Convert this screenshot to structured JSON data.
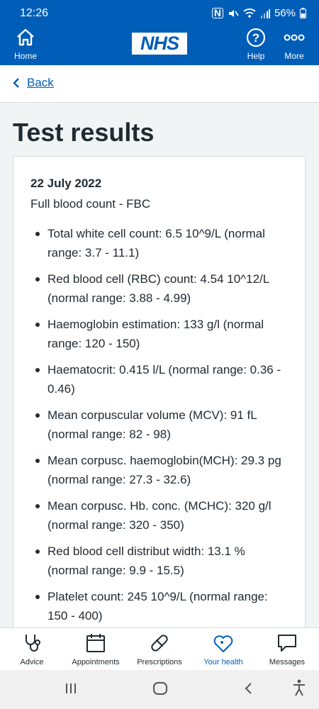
{
  "status_bar": {
    "time": "12:26",
    "battery": "56%",
    "icons": [
      "nfc-icon",
      "mute-icon",
      "wifi-icon",
      "signal-icon",
      "battery-icon"
    ]
  },
  "header": {
    "home_label": "Home",
    "logo_text": "NHS",
    "help_label": "Help",
    "more_label": "More"
  },
  "back_label": "Back",
  "page_title": "Test results",
  "result": {
    "date": "22 July 2022",
    "test_name": "Full blood count - FBC",
    "items": [
      "Total white cell count: 6.5 10^9/L (normal range: 3.7 - 11.1)",
      "Red blood cell (RBC) count: 4.54 10^12/L (normal range: 3.88 - 4.99)",
      "Haemoglobin estimation: 133 g/l (normal range: 120 - 150)",
      "Haematocrit: 0.415 l/L (normal range: 0.36 - 0.46)",
      "Mean corpuscular volume (MCV): 91 fL (normal range: 82 - 98)",
      "Mean corpusc. haemoglobin(MCH): 29.3 pg (normal range: 27.3 - 32.6)",
      "Mean corpusc. Hb. conc. (MCHC): 320 g/l (normal range: 320 - 350)",
      "Red blood cell distribut width: 13.1 % (normal range: 9.9 - 15.5)",
      "Platelet count: 245 10^9/L (normal range: 150 - 400)"
    ]
  },
  "tabs": [
    {
      "label": "Advice",
      "icon": "stethoscope-icon"
    },
    {
      "label": "Appointments",
      "icon": "calendar-icon"
    },
    {
      "label": "Prescriptions",
      "icon": "pill-icon"
    },
    {
      "label": "Your health",
      "icon": "heart-icon",
      "active": true
    },
    {
      "label": "Messages",
      "icon": "message-icon"
    }
  ],
  "colors": {
    "nhs_blue": "#005eb8",
    "text": "#212b32",
    "page_bg": "#f0f4f5"
  }
}
